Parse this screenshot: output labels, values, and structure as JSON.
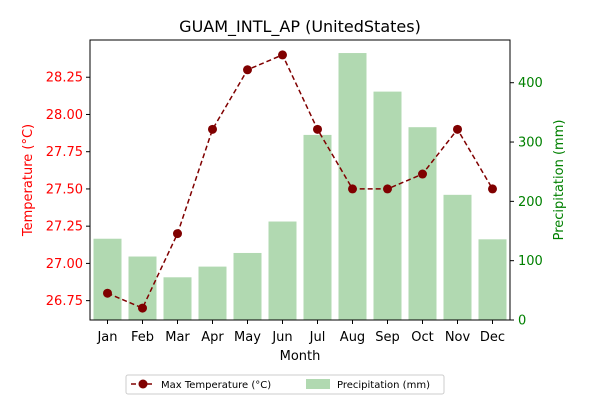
{
  "chart_data": {
    "type": "bar+line",
    "title": "GUAM_INTL_AP (UnitedStates)",
    "xlabel": "Month",
    "categories": [
      "Jan",
      "Feb",
      "Mar",
      "Apr",
      "May",
      "Jun",
      "Jul",
      "Aug",
      "Sep",
      "Oct",
      "Nov",
      "Dec"
    ],
    "left_axis": {
      "label": "Temperature (°C)",
      "color": "#ff0000",
      "ylim": [
        26.62,
        28.5
      ],
      "ticks": [
        "26.75",
        "27.00",
        "27.25",
        "27.50",
        "27.75",
        "28.00",
        "28.25"
      ]
    },
    "right_axis": {
      "label": "Precipitation (mm)",
      "color": "#008000",
      "ylim": [
        0,
        472
      ],
      "ticks": [
        "0",
        "100",
        "200",
        "300",
        "400"
      ]
    },
    "series": [
      {
        "name": "Max Temperature (°C)",
        "kind": "line",
        "axis": "left",
        "color": "#800000",
        "values": [
          26.8,
          26.7,
          27.2,
          27.9,
          28.3,
          28.4,
          27.9,
          27.5,
          27.5,
          27.6,
          27.9,
          27.5
        ]
      },
      {
        "name": "Precipitation (mm)",
        "kind": "bar",
        "axis": "right",
        "color": "#b1d9b1",
        "values": [
          137,
          107,
          72,
          90,
          113,
          166,
          312,
          450,
          385,
          325,
          211,
          136
        ]
      }
    ],
    "legend_position": "bottom-center",
    "grid": false
  }
}
